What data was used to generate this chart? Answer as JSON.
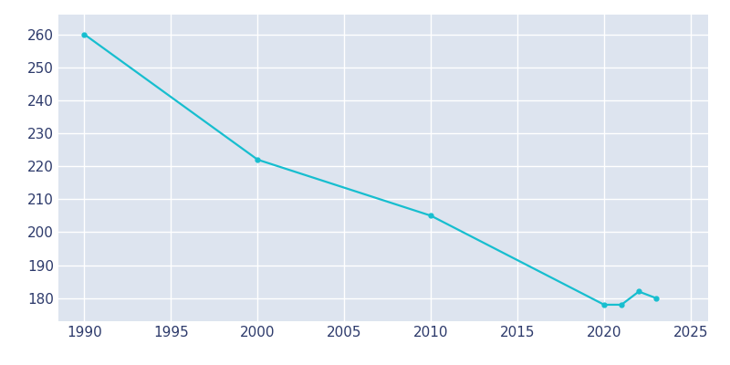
{
  "x": [
    1990,
    2000,
    2010,
    2020,
    2021,
    2022,
    2023
  ],
  "y": [
    260,
    222,
    205,
    178,
    178,
    182,
    180
  ],
  "line_color": "#17becf",
  "marker_style": "o",
  "marker_size": 3.5,
  "line_width": 1.6,
  "figure_bg_color": "#ffffff",
  "axes_bg_color": "#dde4ef",
  "grid_color": "#ffffff",
  "xlabel": "",
  "ylabel": "",
  "xlim": [
    1988.5,
    2026
  ],
  "ylim": [
    173,
    266
  ],
  "xtick_values": [
    1990,
    1995,
    2000,
    2005,
    2010,
    2015,
    2020,
    2025
  ],
  "ytick_values": [
    180,
    190,
    200,
    210,
    220,
    230,
    240,
    250,
    260
  ],
  "tick_color": "#2d3a6b",
  "tick_fontsize": 11
}
